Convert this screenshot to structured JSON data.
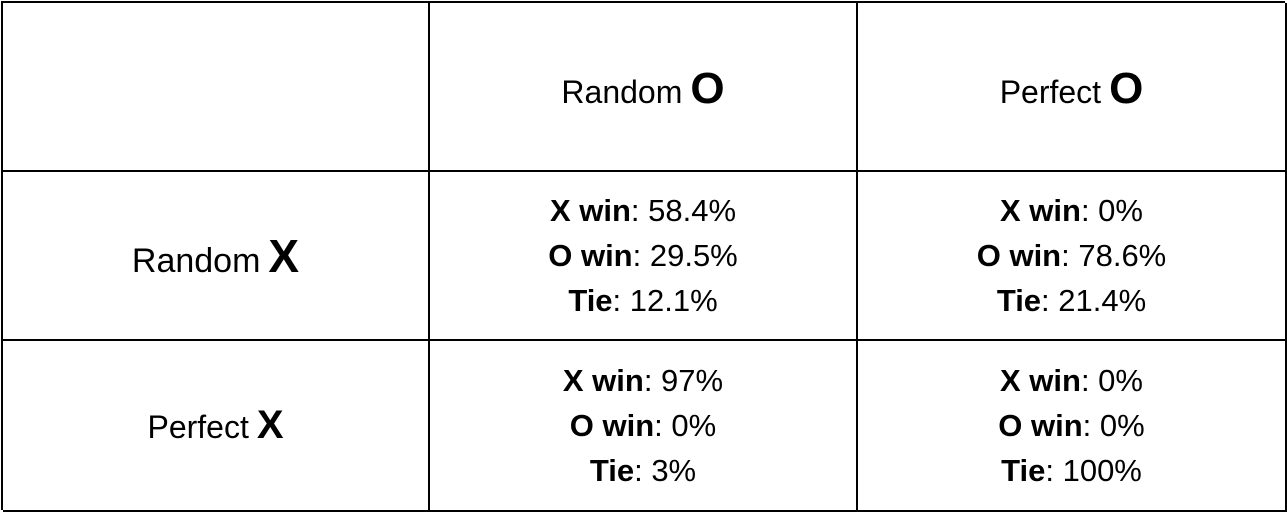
{
  "columns": [
    {
      "word": "Random",
      "symbol": "O"
    },
    {
      "word": "Perfect",
      "symbol": "O"
    }
  ],
  "rows": [
    {
      "word": "Random",
      "symbol": "X",
      "cells": [
        {
          "x_label": "X win",
          "x_value": ": 58.4%",
          "o_label": "O win",
          "o_value": ": 29.5%",
          "tie_label": "Tie",
          "tie_value": ": 12.1%"
        },
        {
          "x_label": "X win",
          "x_value": ": 0%",
          "o_label": "O win",
          "o_value": ": 78.6%",
          "tie_label": "Tie",
          "tie_value": ": 21.4%"
        }
      ]
    },
    {
      "word": "Perfect",
      "symbol": "X",
      "cells": [
        {
          "x_label": "X win",
          "x_value": ": 97%",
          "o_label": "O win",
          "o_value": ": 0%",
          "tie_label": "Tie",
          "tie_value": ": 3%"
        },
        {
          "x_label": "X win",
          "x_value": ": 0%",
          "o_label": "O win",
          "o_value": ": 0%",
          "tie_label": "Tie",
          "tie_value": ": 100%"
        }
      ]
    }
  ]
}
